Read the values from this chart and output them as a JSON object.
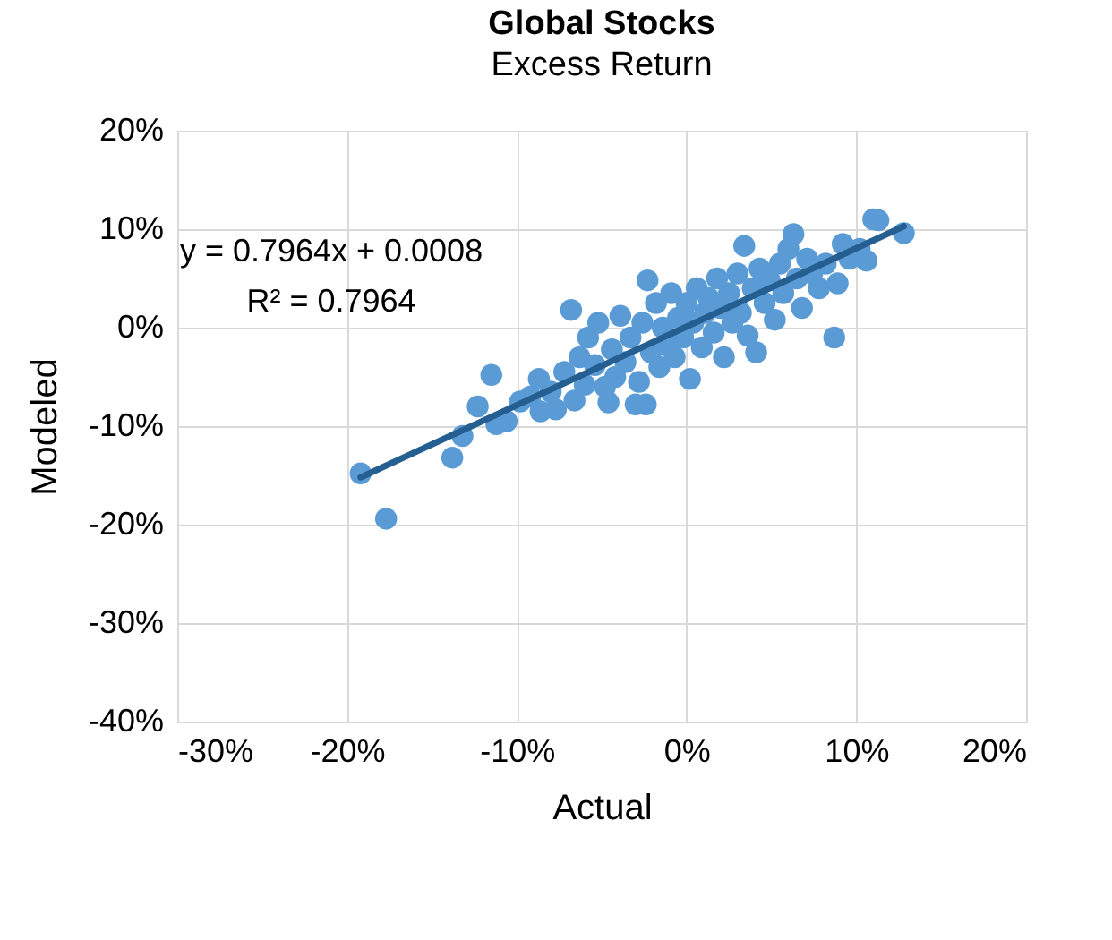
{
  "chart_data": {
    "type": "scatter",
    "title": "Global Stocks",
    "subtitle": "Excess Return",
    "xlabel": "Actual",
    "ylabel": "Modeled",
    "annotations": [
      "y = 0.7964x + 0.0008",
      "R² = 0.7964"
    ],
    "xlim": [
      -30,
      20
    ],
    "xticks": [
      {
        "value": -30,
        "label": "-30%"
      },
      {
        "value": -20,
        "label": "-20%"
      },
      {
        "value": -10,
        "label": "-10%"
      },
      {
        "value": 0,
        "label": "0%"
      },
      {
        "value": 10,
        "label": "10%"
      },
      {
        "value": 20,
        "label": "20%"
      }
    ],
    "ylim": [
      -40,
      20
    ],
    "yticks": [
      {
        "value": -40,
        "label": "-40%"
      },
      {
        "value": -30,
        "label": "-30%"
      },
      {
        "value": -20,
        "label": "-20%"
      },
      {
        "value": -10,
        "label": "-10%"
      },
      {
        "value": 0,
        "label": "0%"
      },
      {
        "value": 10,
        "label": "10%"
      },
      {
        "value": 20,
        "label": "20%"
      }
    ],
    "grid": true,
    "series": [
      {
        "marker": "circle",
        "color": "#5b9bd5",
        "x": [
          -19.2,
          -17.7,
          -13.8,
          -13.2,
          -12.3,
          -11.5,
          -11.2,
          -10.6,
          -9.8,
          -9.2,
          -8.7,
          -8.6,
          -8.0,
          -7.7,
          -7.2,
          -6.8,
          -6.6,
          -6.3,
          -6.0,
          -5.8,
          -5.4,
          -5.2,
          -4.8,
          -4.6,
          -4.4,
          -4.2,
          -3.9,
          -3.6,
          -3.3,
          -3.0,
          -2.8,
          -2.6,
          -2.4,
          -2.3,
          -2.1,
          -1.8,
          -1.6,
          -1.4,
          -1.2,
          -0.9,
          -0.7,
          -0.5,
          -0.2,
          0.0,
          0.2,
          0.4,
          0.6,
          0.9,
          1.1,
          1.3,
          1.6,
          1.8,
          2.0,
          2.2,
          2.5,
          2.7,
          3.0,
          3.2,
          3.4,
          3.6,
          3.9,
          4.1,
          4.3,
          4.6,
          4.9,
          5.2,
          5.5,
          5.7,
          6.0,
          6.3,
          6.5,
          6.8,
          7.1,
          7.4,
          7.8,
          8.2,
          8.7,
          8.9,
          9.2,
          9.6,
          10.2,
          10.6,
          11.0,
          11.3,
          12.8
        ],
        "values": [
          -14.8,
          -19.4,
          -13.2,
          -11.0,
          -8.0,
          -4.8,
          -9.8,
          -9.5,
          -7.5,
          -7.0,
          -5.2,
          -8.5,
          -6.5,
          -8.3,
          -4.5,
          1.8,
          -7.4,
          -3.0,
          -5.8,
          -1.0,
          -3.8,
          0.5,
          -6.0,
          -7.6,
          -2.2,
          -5.0,
          1.2,
          -3.5,
          -1.0,
          -7.8,
          -5.5,
          0.5,
          -7.8,
          4.8,
          -2.5,
          2.5,
          -4.0,
          0.0,
          -1.8,
          3.5,
          -3.0,
          1.0,
          -1.0,
          2.5,
          -5.2,
          0.5,
          4.0,
          -2.0,
          1.5,
          3.0,
          -0.5,
          5.0,
          2.0,
          -3.0,
          3.5,
          0.5,
          5.5,
          1.5,
          8.3,
          -0.8,
          4.0,
          -2.5,
          6.0,
          2.5,
          4.8,
          0.8,
          6.5,
          3.5,
          8.0,
          9.5,
          5.0,
          2.0,
          7.0,
          5.5,
          4.0,
          6.5,
          -1.0,
          4.5,
          8.5,
          7.0,
          8.0,
          6.8,
          11.0,
          10.9,
          9.6
        ]
      },
      {
        "type": "line",
        "color": "#255e91",
        "x": [
          -19.2,
          12.8
        ],
        "values": [
          -15.2,
          10.3
        ]
      }
    ]
  }
}
